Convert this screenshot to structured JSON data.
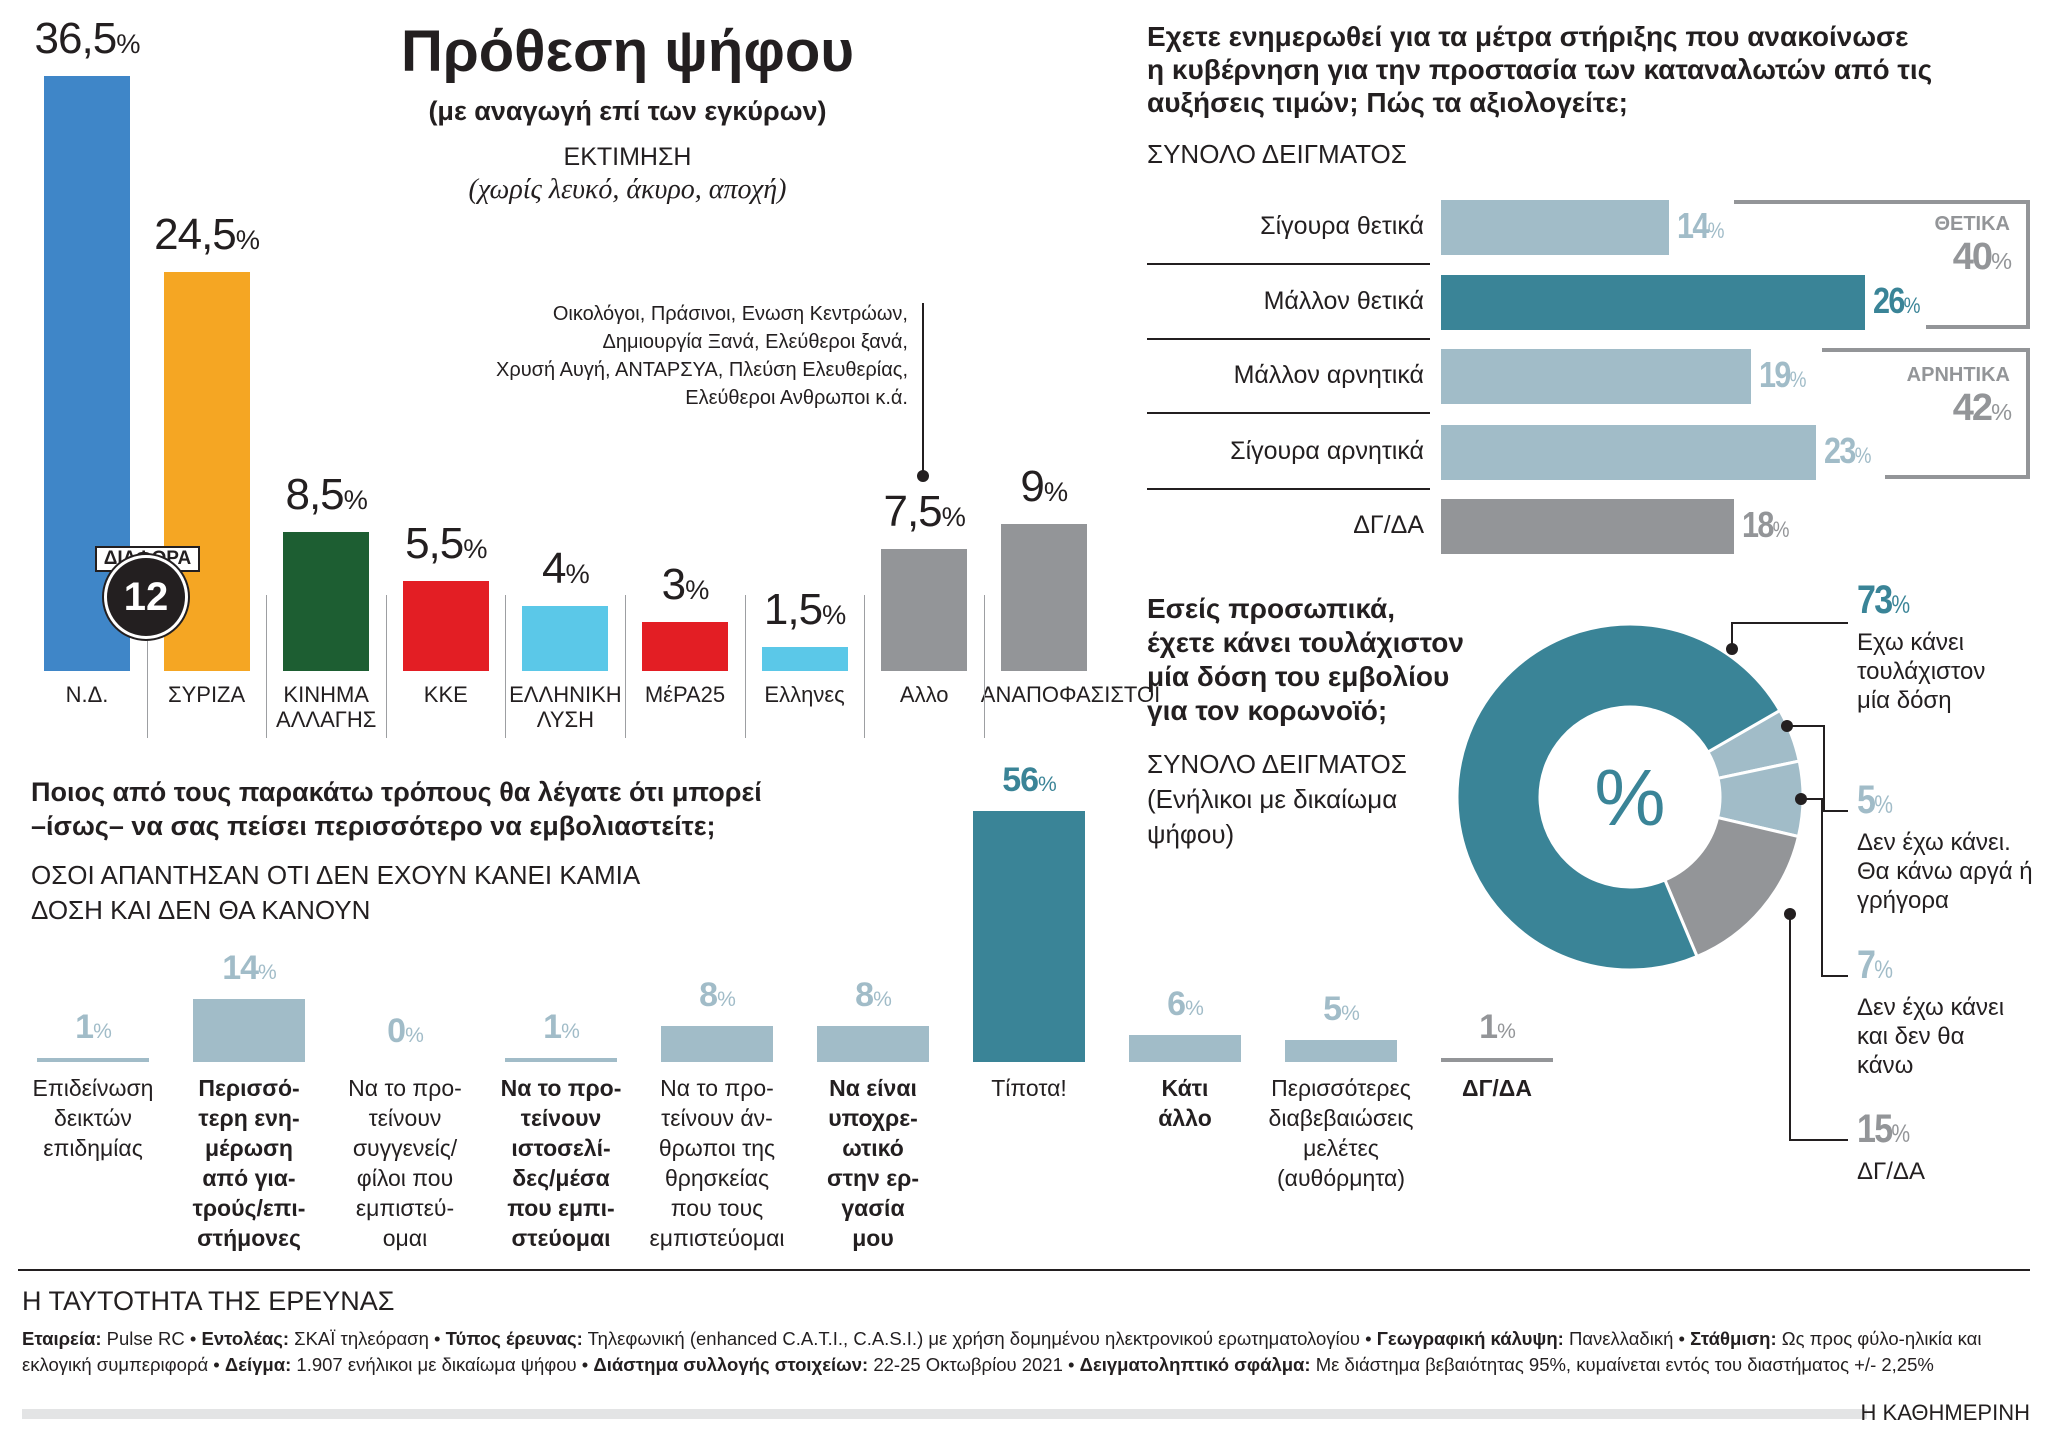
{
  "vote": {
    "title": "Πρόθεση ψήφου",
    "subtitle": "(με αναγωγή επί των εγκύρων)",
    "estimate_label": "ΕΚΤΙΜΗΣΗ",
    "estimate_note": "(χωρίς λευκό, άκυρο, αποχή)",
    "other_note": [
      "Οικολόγοι, Πράσινοι, Ενωση Κεντρώων,",
      "Δημιουργία Ξανά, Ελεύθεροι ξανά,",
      "Χρυσή Αυγή, ΑΝΤΑΡΣΥΑ, Πλεύση Ελευθερίας,",
      "Ελεύθεροι Ανθρωποι κ.ά."
    ],
    "difference_label": "ΔΙΑΦΟΡΑ",
    "difference_value": "12"
  },
  "measures": {
    "title": [
      "Εχετε ενημερωθεί για τα μέτρα στήριξης που ανακοίνωσε",
      "η κυβέρνηση για την προστασία των καταναλωτών από τις",
      "αυξήσεις τιμών; Πώς τα αξιολογείτε;"
    ],
    "subtitle": "ΣΥΝΟΛΟ ΔΕΙΓΜΑΤΟΣ",
    "positive_label": "ΘΕΤΙΚΑ",
    "positive_value": "40",
    "negative_label": "ΑΡΝΗΤΙΚΑ",
    "negative_value": "42"
  },
  "vaccine": {
    "title": [
      "Εσείς προσωπικά,",
      "έχετε κάνει τουλάχιστον",
      "μία δόση του εμβολίου",
      "για τον κορωνοϊό;"
    ],
    "subtitle": [
      "ΣΥΝΟΛΟ ΔΕΙΓΜΑΤΟΣ",
      "(Ενήλικοι με δικαίωμα",
      "ψήφου)"
    ],
    "center_symbol": "%"
  },
  "persuade": {
    "title": [
      "Ποιος από τους παρακάτω τρόπους θα λέγατε ότι μπορεί",
      "–ίσως– να σας πείσει περισσότερο να εμβολιαστείτε;"
    ],
    "subtitle": [
      "ΟΣΟΙ ΑΠΑΝΤΗΣΑΝ ΟΤΙ ΔΕΝ ΕΧΟΥΝ ΚΑΝΕΙ ΚΑΜΙΑ",
      "ΔΟΣΗ ΚΑΙ ΔΕΝ ΘΑ ΚΑΝΟΥΝ"
    ]
  },
  "footer": {
    "title": "Η ΤΑΥΤΟΤΗΤΑ ΤΗΣ ΕΡΕΥΝΑΣ",
    "items": [
      {
        "k": "Εταιρεία:",
        "v": "Pulse RC"
      },
      {
        "k": "Εντολέας:",
        "v": "ΣΚΑΪ τηλεόραση"
      },
      {
        "k": "Τύπος έρευνας:",
        "v": "Τηλεφωνική (enhanced C.A.T.I., C.A.S.I.) με χρήση δομημένου ηλεκτρονικού ερωτηματολογίου"
      },
      {
        "k": "Γεωγραφική κάλυψη:",
        "v": "Πανελλαδική"
      },
      {
        "k": "Στάθμιση:",
        "v": "Ως προς φύλο-ηλικία και εκλογική συμπεριφορά"
      },
      {
        "k": "Δείγμα:",
        "v": "1.907 ενήλικοι με δικαίωμα ψήφου"
      },
      {
        "k": "Διάστημα συλλογής στοιχείων:",
        "v": "22-25 Οκτωβρίου 2021"
      },
      {
        "k": "Δειγματοληπτικό σφάλμα:",
        "v": "Με διάστημα βεβαιότητας 95%, κυμαίνεται εντός του διαστήματος +/- 2,25%"
      }
    ],
    "brand": "Η ΚΑΘΗΜΕΡΙΝΗ"
  },
  "chart_data": [
    {
      "type": "bar",
      "title": "Πρόθεση ψήφου",
      "categories": [
        "Ν.Δ.",
        "ΣΥΡΙΖΑ",
        "ΚΙΝΗΜΑ ΑΛΛΑΓΗΣ",
        "ΚΚΕ",
        "ΕΛΛΗΝΙΚΗ ΛΥΣΗ",
        "ΜέΡΑ25",
        "Ελληνες",
        "Αλλο",
        "ΑΝΑΠΟΦΑΣΙΣΤΟΙ"
      ],
      "labels": [
        "36,5",
        "24,5",
        "8,5",
        "5,5",
        "4",
        "3",
        "1,5",
        "7,5",
        "9"
      ],
      "values": [
        36.5,
        24.5,
        8.5,
        5.5,
        4,
        3,
        1.5,
        7.5,
        9
      ],
      "colors": [
        "#3f86c8",
        "#f5a623",
        "#1d5e32",
        "#e31e24",
        "#5bc8e8",
        "#e31e24",
        "#5bc8e8",
        "#939598",
        "#939598"
      ],
      "ylim": [
        0,
        36.5
      ]
    },
    {
      "type": "bar",
      "orientation": "horizontal",
      "categories": [
        "Σίγουρα θετικά",
        "Μάλλον θετικά",
        "Μάλλον αρνητικά",
        "Σίγουρα αρνητικά",
        "ΔΓ/ΔΑ"
      ],
      "values": [
        14,
        26,
        19,
        23,
        18
      ],
      "colors": [
        "#a1bcc8",
        "#3a8497",
        "#a1bcc8",
        "#a1bcc8",
        "#939598"
      ]
    },
    {
      "type": "pie",
      "donut": true,
      "categories": [
        "Εχω κάνει τουλάχιστον μία δόση",
        "Δεν έχω κάνει. Θα κάνω αργά ή γρήγορα",
        "Δεν έχω κάνει και δεν θα κάνω",
        "ΔΓ/ΔΑ"
      ],
      "values": [
        73,
        5,
        7,
        15
      ],
      "colors": [
        "#3a8497",
        "#a1bcc8",
        "#a1bcc8",
        "#939598"
      ]
    },
    {
      "type": "bar",
      "categories": [
        "Επιδείνωση δεικτών επιδημίας",
        "Περισσό-τερη ενη-μέρωση από για-τρούς/επι-στήμονες",
        "Να το προ-τείνουν συγγενείς/ φίλοι που εμπιστεύ-ομαι",
        "Να το προ-τείνουν ιστοσελί-δες/μέσα που εμπι-στεύομαι",
        "Να το προ-τείνουν άν-θρωποι της θρησκείας που τους εμπιστεύομαι",
        "Να είναι υποχρε-ωτικό στην ερ-γασία μου",
        "Τίποτα!",
        "Κάτι άλλο",
        "Περισσότερες διαβεβαιώσεις μελέτες (αυθόρμητα)",
        "ΔΓ/ΔΑ"
      ],
      "label_lines": [
        [
          "Επιδείνωση",
          "δεικτών",
          "επιδημίας"
        ],
        [
          "Περισσό-",
          "τερη ενη-",
          "μέρωση",
          "από για-",
          "τρούς/επι-",
          "στήμονες"
        ],
        [
          "Να το προ-",
          "τείνουν",
          "συγγενείς/",
          "φίλοι που",
          "εμπιστεύ-",
          "ομαι"
        ],
        [
          "Να το προ-",
          "τείνουν",
          "ιστοσελί-",
          "δες/μέσα",
          "που εμπι-",
          "στεύομαι"
        ],
        [
          "Να το προ-",
          "τείνουν άν-",
          "θρωποι της",
          "θρησκείας",
          "που τους",
          "εμπιστεύομαι"
        ],
        [
          "Να είναι",
          "υποχρε-",
          "ωτικό",
          "στην ερ-",
          "γασία",
          "μου"
        ],
        [
          "Τίποτα!"
        ],
        [
          "Κάτι",
          "άλλο"
        ],
        [
          "Περισσότερες",
          "διαβεβαιώσεις",
          "μελέτες",
          "(αυθόρμητα)"
        ],
        [
          "ΔΓ/ΔΑ"
        ]
      ],
      "bold": [
        false,
        true,
        false,
        true,
        false,
        true,
        false,
        true,
        false,
        true
      ],
      "values": [
        1,
        14,
        0,
        1,
        8,
        8,
        56,
        6,
        5,
        1
      ],
      "colors": [
        "#a1bcc8",
        "#a1bcc8",
        "#a1bcc8",
        "#a1bcc8",
        "#a1bcc8",
        "#a1bcc8",
        "#3a8497",
        "#a1bcc8",
        "#a1bcc8",
        "#939598"
      ],
      "value_colors": [
        "#a1bcc8",
        "#a1bcc8",
        "#a1bcc8",
        "#a1bcc8",
        "#a1bcc8",
        "#a1bcc8",
        "#3a8497",
        "#a1bcc8",
        "#a1bcc8",
        "#939598"
      ]
    }
  ]
}
